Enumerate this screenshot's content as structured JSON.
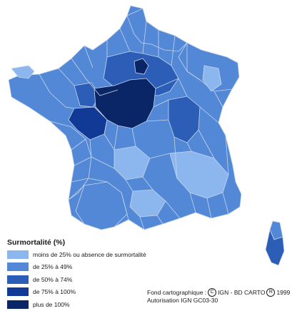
{
  "legend": {
    "title": "Surmortalité (%)",
    "classes": [
      {
        "label": "moins de 25% ou absence de surmortalité",
        "color": "#8bb7ee"
      },
      {
        "label": "de 25% à 49%",
        "color": "#5288d6"
      },
      {
        "label": "de 50% à 74%",
        "color": "#2c5eb7"
      },
      {
        "label": "de 75% à 100%",
        "color": "#103a95"
      },
      {
        "label": "plus de 100%",
        "color": "#0a2666"
      }
    ]
  },
  "credits": {
    "line1_before": "Fond cartographique :",
    "symbol_c": "C",
    "line1_middle": "IGN - BD CARTO",
    "symbol_r": "R",
    "line1_after": "1999",
    "line2": "Autorisation IGN GC03-30"
  },
  "colors": {
    "border": "#c8d6ec",
    "outline": "#4a6fb0"
  }
}
